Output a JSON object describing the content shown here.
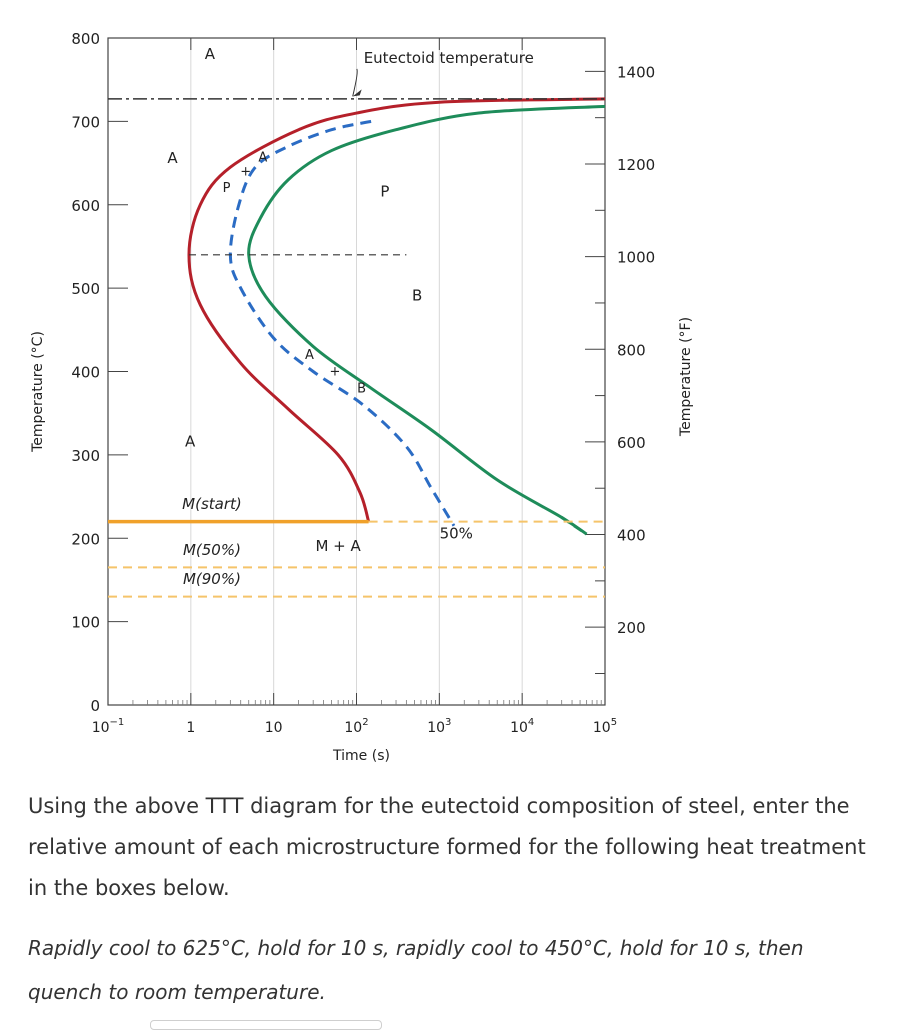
{
  "chart_data": {
    "type": "line",
    "title": "",
    "xlabel": "Time (s)",
    "ylabel": "Temperature (°C)",
    "y2label": "Temperature (°F)",
    "x_scale": "log",
    "xlim": [
      0.1,
      100000
    ],
    "ylim": [
      0,
      800
    ],
    "x_ticks": [
      0.1,
      1,
      10,
      100,
      1000,
      10000,
      100000
    ],
    "x_tick_labels": [
      {
        "base": "10",
        "sup": "−1"
      },
      {
        "base": "1",
        "sup": ""
      },
      {
        "base": "10",
        "sup": ""
      },
      {
        "base": "10",
        "sup": "2"
      },
      {
        "base": "10",
        "sup": "3"
      },
      {
        "base": "10",
        "sup": "4"
      },
      {
        "base": "10",
        "sup": "5"
      }
    ],
    "y_ticks": [
      0,
      100,
      200,
      300,
      400,
      500,
      600,
      700,
      800
    ],
    "y_tick_labels": [
      "0",
      "100",
      "200",
      "300",
      "400",
      "500",
      "600",
      "700",
      "800"
    ],
    "y2_ticks": [
      200,
      400,
      600,
      800,
      1000,
      1200,
      1400
    ],
    "y2_tick_labels": [
      "200",
      "400",
      "600",
      "800",
      "1000",
      "1200",
      "1400"
    ],
    "grid": true,
    "colors": {
      "start_curve": "#b5202a",
      "finish_curve": "#1e8c5a",
      "fifty_percent_curve": "#2b6cc4",
      "martensite_start": "#f0a12a",
      "martensite_dashed": "#f5c46a",
      "eutectoid_line": "#333333"
    },
    "series": [
      {
        "name": "",
        "role": "transformation-start",
        "style": "solid",
        "points": [
          [
            100000,
            727
          ],
          [
            1000,
            723
          ],
          [
            100,
            710
          ],
          [
            20,
            690
          ],
          [
            3,
            645
          ],
          [
            1.3,
            600
          ],
          [
            0.95,
            540
          ],
          [
            1.3,
            480
          ],
          [
            4,
            410
          ],
          [
            15,
            355
          ],
          [
            60,
            300
          ],
          [
            110,
            255
          ],
          [
            140,
            220
          ]
        ]
      },
      {
        "name": "50%",
        "role": "fifty-percent",
        "style": "dashed",
        "points": [
          [
            150,
            700
          ],
          [
            50,
            690
          ],
          [
            15,
            670
          ],
          [
            6,
            645
          ],
          [
            3.8,
            600
          ],
          [
            3,
            540
          ],
          [
            4,
            500
          ],
          [
            10,
            440
          ],
          [
            30,
            400
          ],
          [
            120,
            360
          ],
          [
            400,
            310
          ],
          [
            800,
            260
          ],
          [
            1500,
            215
          ]
        ]
      },
      {
        "name": "",
        "role": "transformation-finish",
        "style": "solid",
        "points": [
          [
            100000,
            718
          ],
          [
            3000,
            710
          ],
          [
            300,
            690
          ],
          [
            50,
            665
          ],
          [
            15,
            630
          ],
          [
            7,
            585
          ],
          [
            5,
            540
          ],
          [
            8,
            490
          ],
          [
            30,
            430
          ],
          [
            150,
            380
          ],
          [
            800,
            330
          ],
          [
            5000,
            270
          ],
          [
            30000,
            225
          ],
          [
            60000,
            205
          ]
        ]
      },
      {
        "name": "",
        "role": "transformation-finish-extension",
        "style": "dashed",
        "points": [
          [
            30000,
            225
          ],
          [
            60000,
            205
          ]
        ]
      },
      {
        "name": "",
        "role": "eutectoid-temperature",
        "style": "dash-dot",
        "points": [
          [
            0.1,
            727
          ],
          [
            100000,
            727
          ]
        ]
      },
      {
        "name": "M(start)",
        "role": "martensite-start",
        "style": "solid",
        "points": [
          [
            0.1,
            220
          ],
          [
            140,
            220
          ]
        ]
      },
      {
        "name": "",
        "role": "martensite-start-extension",
        "style": "dashed",
        "points": [
          [
            140,
            220
          ],
          [
            100000,
            220
          ]
        ]
      },
      {
        "name": "M(50%)",
        "role": "martensite-50",
        "style": "dashed",
        "points": [
          [
            0.1,
            165
          ],
          [
            100000,
            165
          ]
        ]
      },
      {
        "name": "M(90%)",
        "role": "martensite-90",
        "style": "dashed",
        "points": [
          [
            0.1,
            130
          ],
          [
            100000,
            130
          ]
        ]
      },
      {
        "name": "",
        "role": "nose-reference",
        "style": "dashed",
        "points": [
          [
            0.95,
            540
          ],
          [
            400,
            540
          ]
        ]
      }
    ],
    "annotations": [
      {
        "text": "Eutectoid temperature",
        "x": 1300,
        "y": 770,
        "arrow_to": [
          90,
          730
        ]
      },
      {
        "text": "A",
        "x": 1.7,
        "y": 775
      },
      {
        "text": "A",
        "x": 0.6,
        "y": 650
      },
      {
        "text": "A",
        "x": 0.98,
        "y": 310
      },
      {
        "text": "P",
        "x": 2.7,
        "y": 615,
        "small": true
      },
      {
        "text": "+",
        "x": 4.6,
        "y": 635,
        "small": true
      },
      {
        "text": "A",
        "x": 7.4,
        "y": 652,
        "small": true
      },
      {
        "text": "P",
        "x": 220,
        "y": 610
      },
      {
        "text": "A",
        "x": 27,
        "y": 415,
        "small": true
      },
      {
        "text": "+",
        "x": 55,
        "y": 395,
        "small": true
      },
      {
        "text": "B",
        "x": 115,
        "y": 375,
        "small": true
      },
      {
        "text": "B",
        "x": 540,
        "y": 485
      },
      {
        "text": "M(start)",
        "x": 1.8,
        "y": 235
      },
      {
        "text": "M + A",
        "x": 60,
        "y": 185
      },
      {
        "text": "M(50%)",
        "x": 1.8,
        "y": 180
      },
      {
        "text": "M(90%)",
        "x": 1.8,
        "y": 145
      },
      {
        "text": "50%",
        "x": 1600,
        "y": 200
      }
    ]
  },
  "question": {
    "main": "Using the above TTT diagram for the eutectoid composition of steel, enter the relative amount of each microstructure formed for the following heat treatment in the boxes below.",
    "procedure": "Rapidly cool to 625°C, hold for 10 s, rapidly cool to 450°C, hold for 10 s, then quench to room temperature."
  }
}
